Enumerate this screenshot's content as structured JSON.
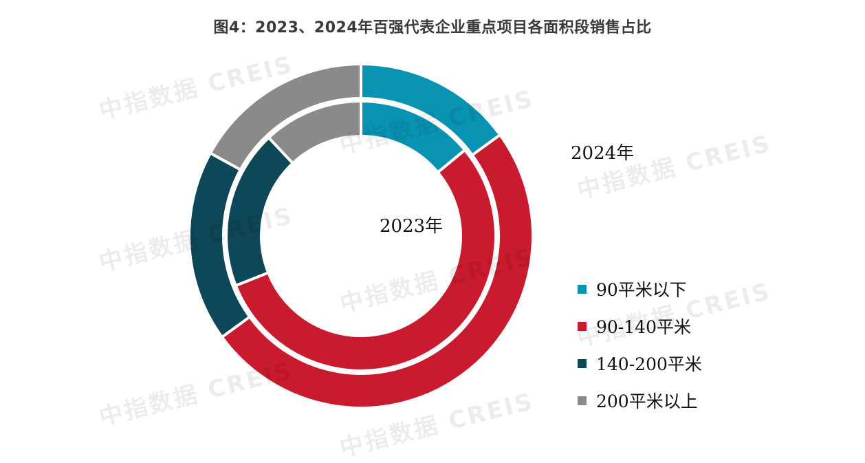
{
  "title": "图4：2023、2024年百强代表企业重点项目各面积段销售占比",
  "watermark": "中指数据 CREIS",
  "chart_data": {
    "type": "pie",
    "subtype": "nested-donut",
    "title": "图4：2023、2024年百强代表企业重点项目各面积段销售占比",
    "categories": [
      "90平米以下",
      "90-140平米",
      "140-200平米",
      "200平米以上"
    ],
    "colors": [
      "#0993b3",
      "#c91b2e",
      "#0e4757",
      "#8a8a8a"
    ],
    "series": [
      {
        "name": "2023年",
        "ring": "inner",
        "values": [
          14,
          55,
          19,
          12
        ]
      },
      {
        "name": "2024年",
        "ring": "outer",
        "values": [
          15,
          50,
          18,
          17
        ]
      }
    ],
    "legend_position": "right"
  }
}
